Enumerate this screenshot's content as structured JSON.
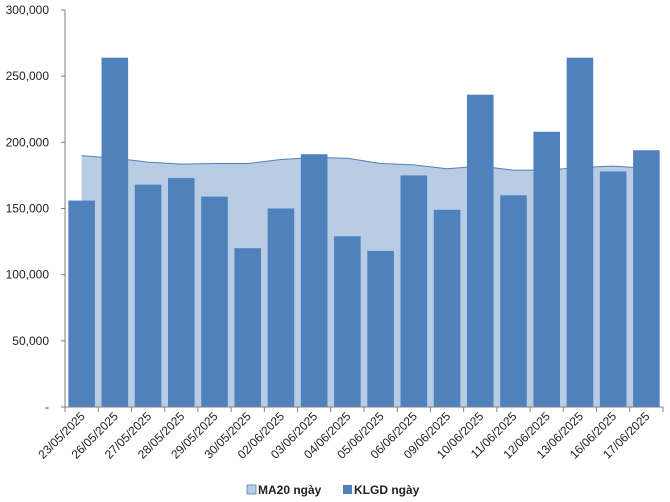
{
  "chart_data": {
    "type": "bar",
    "categories": [
      "23/05/2025",
      "26/05/2025",
      "27/05/2025",
      "28/05/2025",
      "29/05/2025",
      "30/05/2025",
      "02/06/2025",
      "03/06/2025",
      "04/06/2025",
      "05/06/2025",
      "06/06/2025",
      "09/06/2025",
      "10/06/2025",
      "11/06/2025",
      "12/06/2025",
      "13/06/2025",
      "16/06/2025",
      "17/06/2025"
    ],
    "series": [
      {
        "name": "MA20 ngày",
        "type": "area",
        "color": "#b8cce4",
        "line_color": "#4f81bd",
        "values": [
          190000,
          188000,
          185000,
          183500,
          184000,
          184000,
          187000,
          188500,
          188000,
          184000,
          183000,
          180000,
          182000,
          179000,
          179000,
          181000,
          182000,
          180500
        ]
      },
      {
        "name": "KLGD ngày",
        "type": "bar",
        "color": "#4f81bd",
        "values": [
          156000,
          264000,
          168000,
          173000,
          159000,
          120000,
          150000,
          191000,
          129000,
          118000,
          175000,
          149000,
          236000,
          160000,
          208000,
          264000,
          178000,
          194000
        ]
      }
    ],
    "ylim": [
      0,
      300000
    ],
    "y_ticks": [
      0,
      50000,
      100000,
      150000,
      200000,
      250000,
      300000
    ],
    "y_tick_labels": [
      "-",
      "50,000",
      "100,000",
      "150,000",
      "200,000",
      "250,000",
      "300,000"
    ],
    "grid": false,
    "legend_position": "bottom"
  }
}
